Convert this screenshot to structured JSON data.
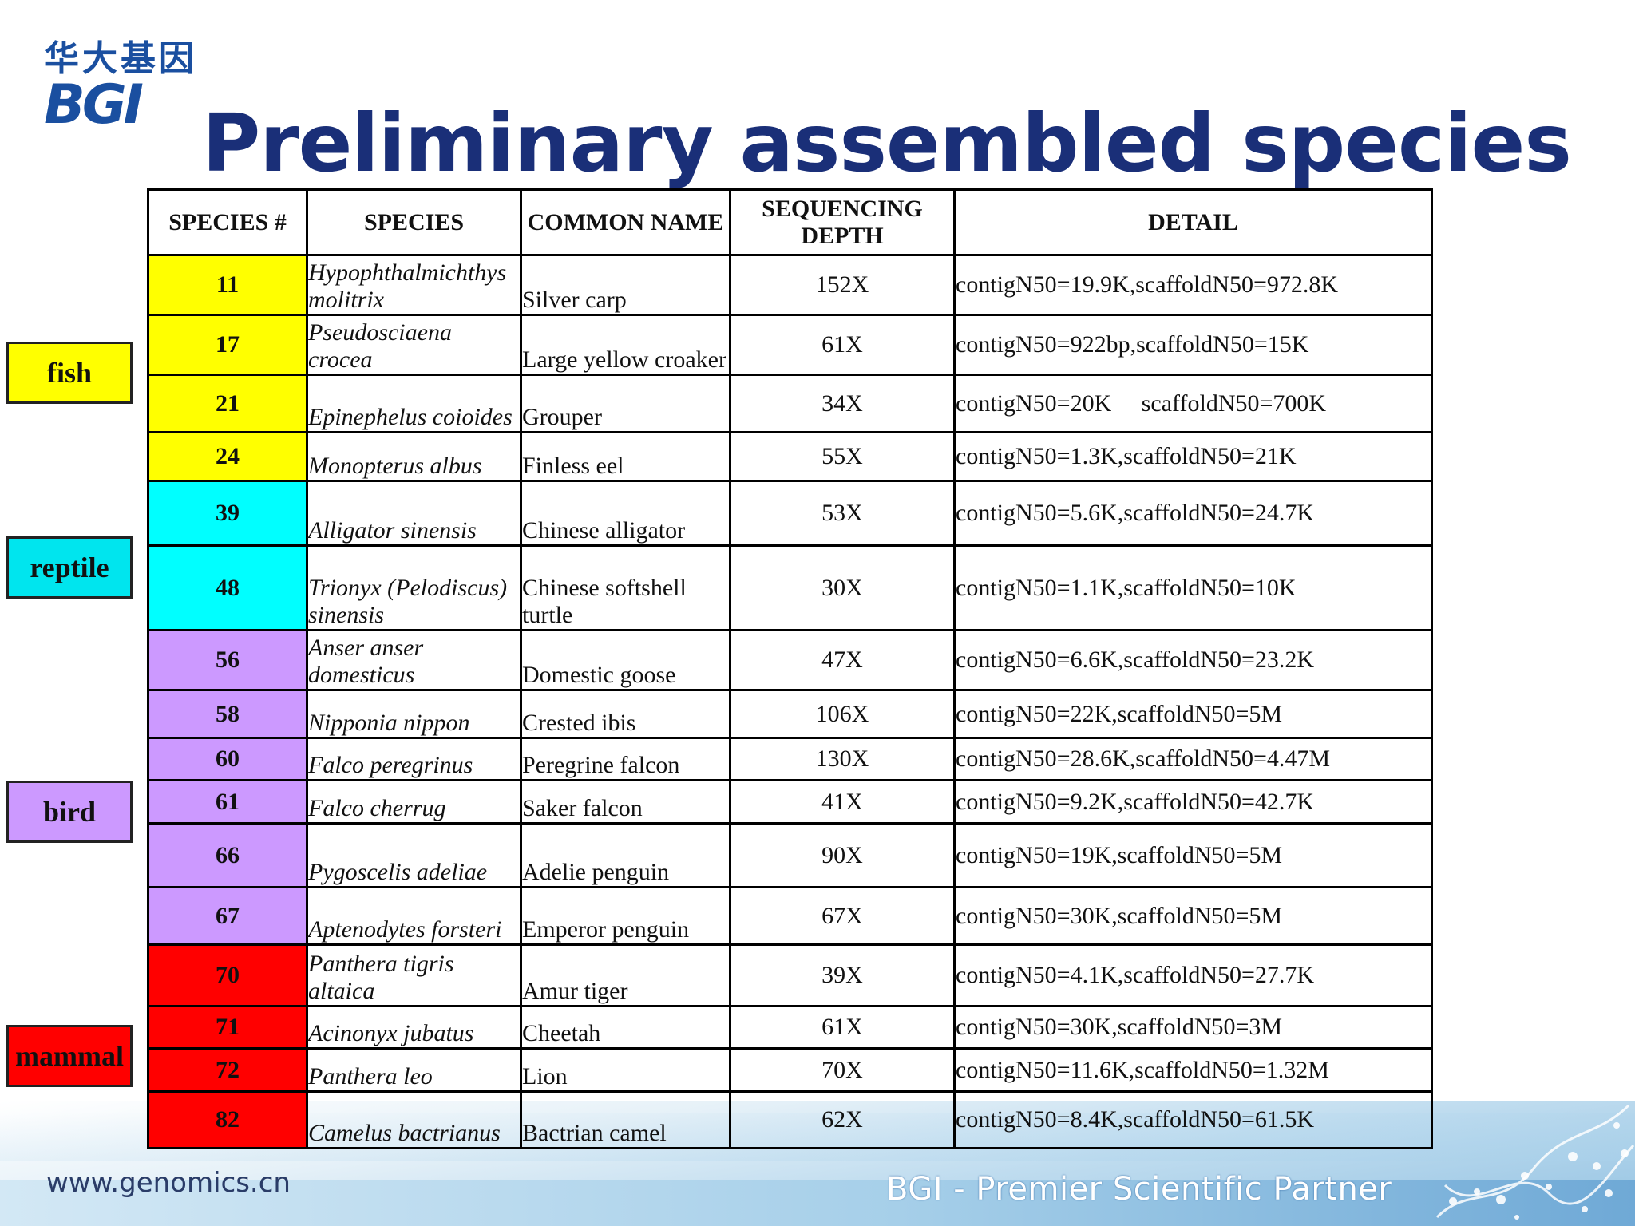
{
  "logo": {
    "cn": "华大基因",
    "en": "BGI"
  },
  "title": "Preliminary assembled species",
  "table": {
    "headers": [
      "SPECIES #",
      "SPECIES",
      "COMMON NAME",
      "SEQUENCING DEPTH",
      "DETAIL"
    ],
    "rows": [
      {
        "num": "11",
        "species": "Hypophthalmichthys molitrix",
        "common": "Silver carp",
        "depth": "152X",
        "detail": "contigN50=19.9K,scaffoldN50=972.8K",
        "color": "#ffff00"
      },
      {
        "num": "17",
        "species": "Pseudosciaena crocea",
        "common": "Large yellow croaker",
        "depth": "61X",
        "detail": "contigN50=922bp,scaffoldN50=15K",
        "color": "#ffff00"
      },
      {
        "num": "21",
        "species": "Epinephelus coioides",
        "common": "Grouper",
        "depth": "34X",
        "detail": "contigN50=20K     scaffoldN50=700K",
        "color": "#ffff00"
      },
      {
        "num": "24",
        "species": "Monopterus albus",
        "common": "Finless eel",
        "depth": "55X",
        "detail": "contigN50=1.3K,scaffoldN50=21K",
        "color": "#ffff00"
      },
      {
        "num": "39",
        "species": "Alligator sinensis",
        "common": "Chinese alligator",
        "depth": "53X",
        "detail": "contigN50=5.6K,scaffoldN50=24.7K",
        "color": "#00ffff"
      },
      {
        "num": "48",
        "species": "Trionyx (Pelodiscus) sinensis",
        "common": "Chinese softshell turtle",
        "depth": "30X",
        "detail": "contigN50=1.1K,scaffoldN50=10K",
        "color": "#00ffff"
      },
      {
        "num": "56",
        "species": "Anser anser domesticus",
        "common": "Domestic goose",
        "depth": "47X",
        "detail": "contigN50=6.6K,scaffoldN50=23.2K",
        "color": "#cc99ff"
      },
      {
        "num": "58",
        "species": "Nipponia nippon",
        "common": "Crested ibis",
        "depth": "106X",
        "detail": "contigN50=22K,scaffoldN50=5M",
        "color": "#cc99ff"
      },
      {
        "num": "60",
        "species": "Falco peregrinus",
        "common": "Peregrine falcon",
        "depth": "130X",
        "detail": "contigN50=28.6K,scaffoldN50=4.47M",
        "color": "#cc99ff"
      },
      {
        "num": "61",
        "species": "Falco cherrug",
        "common": "Saker falcon",
        "depth": "41X",
        "detail": "contigN50=9.2K,scaffoldN50=42.7K",
        "color": "#cc99ff"
      },
      {
        "num": "66",
        "species": "Pygoscelis adeliae",
        "common": "Adelie penguin",
        "depth": "90X",
        "detail": "contigN50=19K,scaffoldN50=5M",
        "color": "#cc99ff"
      },
      {
        "num": "67",
        "species": "Aptenodytes forsteri",
        "common": "Emperor penguin",
        "depth": "67X",
        "detail": "contigN50=30K,scaffoldN50=5M",
        "color": "#cc99ff"
      },
      {
        "num": "70",
        "species": "Panthera tigris altaica",
        "common": "Amur tiger",
        "depth": "39X",
        "detail": "contigN50=4.1K,scaffoldN50=27.7K",
        "color": "#ff0000"
      },
      {
        "num": "71",
        "species": "Acinonyx jubatus",
        "common": "Cheetah",
        "depth": "61X",
        "detail": "contigN50=30K,scaffoldN50=3M",
        "color": "#ff0000"
      },
      {
        "num": "72",
        "species": "Panthera leo",
        "common": "Lion",
        "depth": "70X",
        "detail": "contigN50=11.6K,scaffoldN50=1.32M",
        "color": "#ff0000"
      },
      {
        "num": "82",
        "species": "Camelus bactrianus",
        "common": "Bactrian camel",
        "depth": "62X",
        "detail": "contigN50=8.4K,scaffoldN50=61.5K",
        "color": "#ff0000"
      }
    ]
  },
  "groups": [
    {
      "label": "fish",
      "color": "#ffff00"
    },
    {
      "label": "reptile",
      "color": "#00e5ee"
    },
    {
      "label": "bird",
      "color": "#cc99ff"
    },
    {
      "label": "mammal",
      "color": "#ff0000"
    }
  ],
  "footer": {
    "url": "www.genomics.cn",
    "tagline": "BGI - Premier Scientific Partner"
  }
}
